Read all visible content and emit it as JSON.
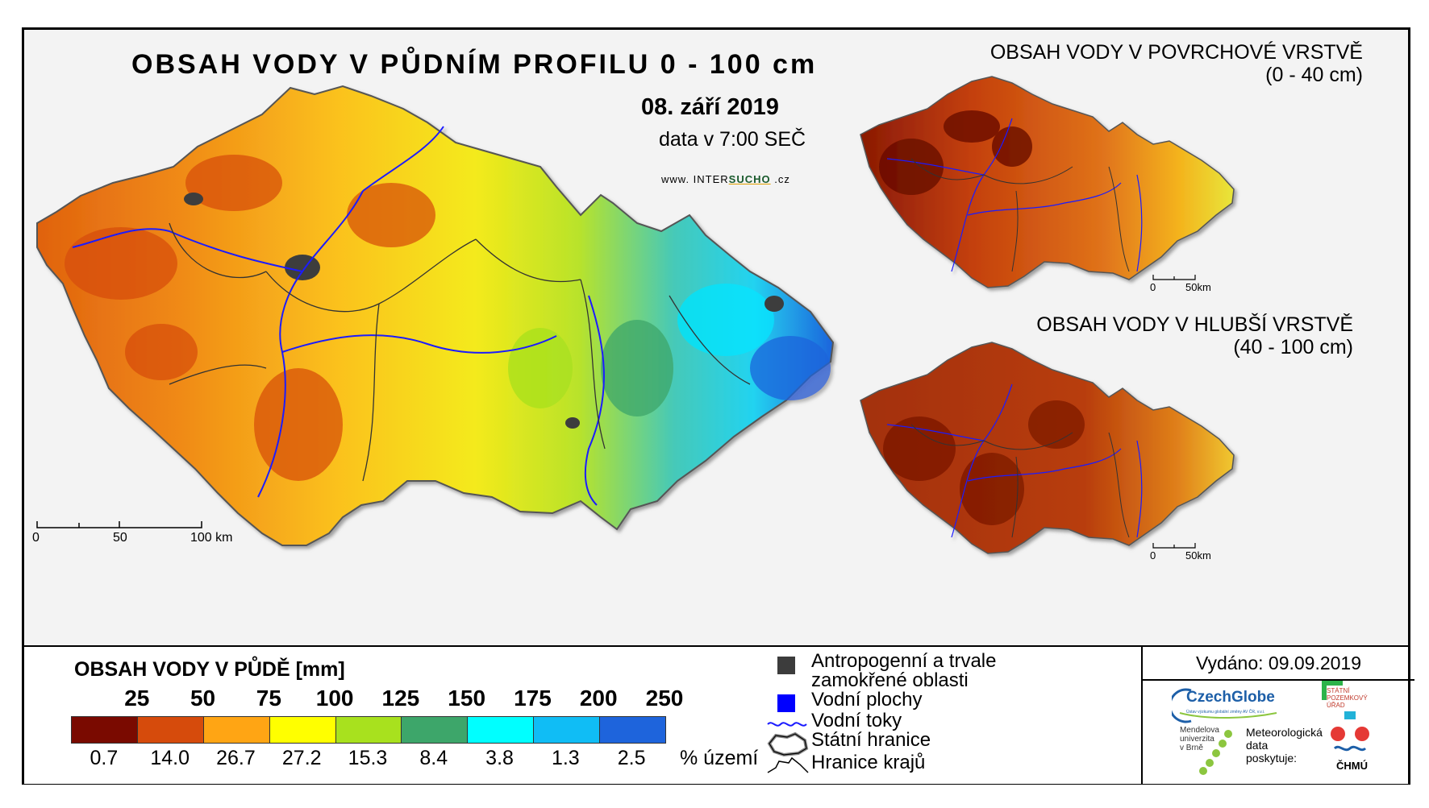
{
  "main_map": {
    "title": "OBSAH VODY V PŮDNÍM PROFILU 0 - 100 cm",
    "date": "08. září 2019",
    "time": "data v 7:00 SEČ",
    "website": {
      "prefix": "www. ",
      "brand_a": "INTER",
      "brand_b": "SUCHO",
      "suffix": " .cz"
    },
    "scale_bar": [
      "0",
      "50",
      "100 km"
    ]
  },
  "surface_map": {
    "title": "OBSAH VODY V POVRCHOVÉ VRSTVĚ",
    "subtitle": "(0 - 40 cm)",
    "scale_bar": [
      "0",
      "50km"
    ]
  },
  "deep_map": {
    "title": "OBSAH VODY V HLUBŠÍ VRSTVĚ",
    "subtitle": "(40 - 100 cm)",
    "scale_bar": [
      "0",
      "50km"
    ]
  },
  "legend": {
    "title": "OBSAH VODY V PŮDĚ [mm]",
    "thresholds": [
      "25",
      "50",
      "75",
      "100",
      "125",
      "150",
      "175",
      "200",
      "250"
    ],
    "classes": [
      {
        "color": "#7a0a00",
        "pct": "0.7"
      },
      {
        "color": "#d64b0c",
        "pct": "14.0"
      },
      {
        "color": "#ffa514",
        "pct": "26.7"
      },
      {
        "color": "#ffff00",
        "pct": "27.2"
      },
      {
        "color": "#a8e11e",
        "pct": "15.3"
      },
      {
        "color": "#3da66a",
        "pct": "8.4"
      },
      {
        "color": "#00ffff",
        "pct": "3.8"
      },
      {
        "color": "#10bdf5",
        "pct": "1.3"
      },
      {
        "color": "#1e64dc",
        "pct": "2.5"
      }
    ],
    "pct_unit": "% území",
    "symbols": {
      "anthropogenic_line1": "Antropogenní a trvale",
      "anthropogenic_line2": "zamokřené oblasti",
      "water_bodies": "Vodní plochy",
      "water_courses": "Vodní toky",
      "state_border": "Státní hranice",
      "regional_border": "Hranice krajů"
    },
    "symbol_colors": {
      "anthropogenic": "#3c3c3c",
      "water_bodies": "#0000ff",
      "water_courses": "#1a1aff"
    }
  },
  "issued": "Vydáno: 09.09.2019",
  "logos": {
    "czechglobe": "CzechGlobe",
    "czechglobe_sub": "Ústav výzkumu globální změny AV ČR, v.v.i.",
    "spu_line1": "STÁTNÍ",
    "spu_line2": "POZEMKOVÝ",
    "spu_line3": "ÚŘAD",
    "mendel_line1": "Mendelova",
    "mendel_line2": "univerzita",
    "mendel_line3": "v Brně",
    "meteo_line1": "Meteorologická",
    "meteo_line2": "data",
    "meteo_line3": "poskytuje:",
    "chmu": "ČHMÚ"
  }
}
